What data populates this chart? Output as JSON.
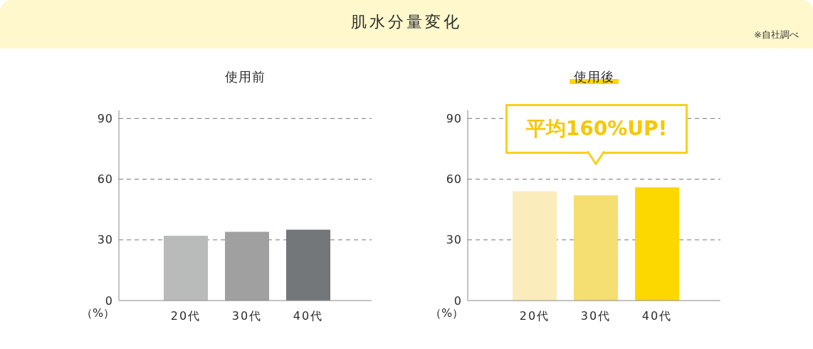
{
  "chart_data": [
    {
      "type": "other",
      "title": "肌水分量変化",
      "annotations": [
        "※自社調べ"
      ]
    },
    {
      "type": "bar",
      "title": "使用前",
      "ylabel": "（%）",
      "categories": [
        "20代",
        "30代",
        "40代"
      ],
      "values": [
        32,
        34,
        35
      ],
      "colors": [
        "#b9bbba",
        "#a0a0a1",
        "#747779"
      ],
      "ylim": [
        0,
        94
      ],
      "yticks": [
        0,
        30,
        60,
        90
      ],
      "grid": "y",
      "legend": false
    },
    {
      "type": "bar",
      "title": "使用後",
      "ylabel": "（%）",
      "categories": [
        "20代",
        "30代",
        "40代"
      ],
      "values": [
        54,
        52,
        56
      ],
      "colors": [
        "#faedbb",
        "#f5de72",
        "#fdd800"
      ],
      "ylim": [
        0,
        94
      ],
      "yticks": [
        0,
        30,
        60,
        90
      ],
      "grid": "y",
      "legend": false,
      "annotations": [
        "平均160%UP!"
      ]
    }
  ]
}
